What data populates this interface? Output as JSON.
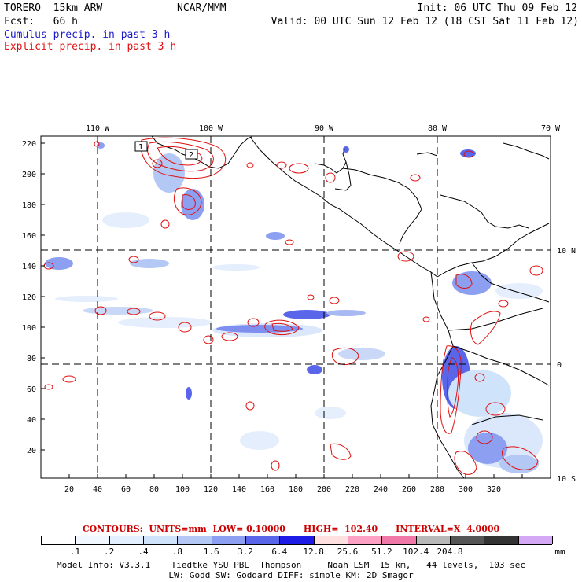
{
  "header": {
    "model": "TORERO  15km ARW",
    "center": "NCAR/MMM",
    "init": "Init: 06 UTC Thu 09 Feb 12",
    "fcst": "Fcst:   66 h",
    "valid": "Valid: 00 UTC Sun 12 Feb 12 (18 CST Sat 11 Feb 12)",
    "legend_cumulus": "Cumulus precip. in past 3 h",
    "legend_explicit": "Explicit precip. in past 3 h",
    "cumulus_color": "#1c1ccc",
    "explicit_color": "#e01010"
  },
  "map": {
    "lon_labels": [
      "110 W",
      "100 W",
      "90 W",
      "80 W",
      "70 W"
    ],
    "lat_labels": [
      "10 N",
      "0",
      "10 S"
    ],
    "x_ticks": [
      "20",
      "40",
      "60",
      "80",
      "100",
      "120",
      "140",
      "160",
      "180",
      "200",
      "220",
      "240",
      "260",
      "280",
      "300",
      "320"
    ],
    "y_ticks": [
      "20",
      "40",
      "60",
      "80",
      "100",
      "120",
      "140",
      "160",
      "180",
      "200",
      "220"
    ],
    "box_labels": [
      "1",
      "2"
    ]
  },
  "contours": {
    "text": "CONTOURS:  UNITS=mm  LOW= 0.10000      HIGH=  102.40      INTERVAL=X  4.0000"
  },
  "colorbar": {
    "colors": [
      "#ffffff",
      "#f2f8ff",
      "#e2f0ff",
      "#cfe4fa",
      "#b4c8f5",
      "#8c9ff0",
      "#5a66ea",
      "#1c1ce6",
      "#ffe0e0",
      "#fca0c4",
      "#f078a8",
      "#b8b8b8",
      "#555555",
      "#333333",
      "#d4a8f5"
    ],
    "labels": [
      ".1",
      ".2",
      ".4",
      ".8",
      "1.6",
      "3.2",
      "6.4",
      "12.8",
      "25.6",
      "51.2",
      "102.4",
      "204.8"
    ],
    "unit": "mm"
  },
  "footer": {
    "line1": "Model Info: V3.3.1    Tiedtke YSU PBL  Thompson     Noah LSM  15 km,   44 levels,  103 sec",
    "line2": "LW: Godd SW: Goddard DIFF: simple KM: 2D Smagor"
  }
}
